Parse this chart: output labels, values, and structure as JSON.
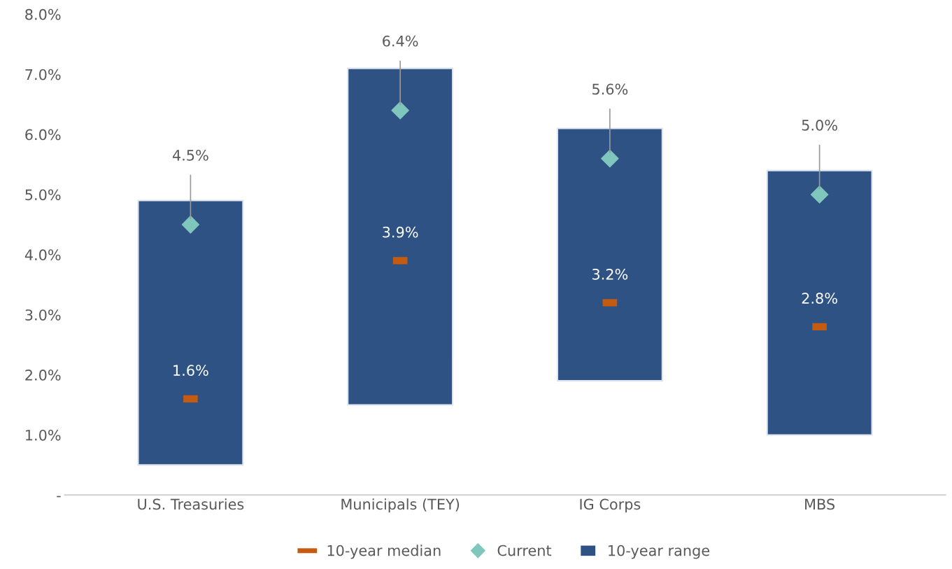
{
  "chart_data": {
    "type": "bar",
    "categories": [
      "U.S. Treasuries",
      "Municipals (TEY)",
      "IG Corps",
      "MBS"
    ],
    "ylim": [
      0,
      8
    ],
    "yticks": [
      {
        "value": 0,
        "label": "-"
      },
      {
        "value": 1,
        "label": "1.0%"
      },
      {
        "value": 2,
        "label": "2.0%"
      },
      {
        "value": 3,
        "label": "3.0%"
      },
      {
        "value": 4,
        "label": "4.0%"
      },
      {
        "value": 5,
        "label": "5.0%"
      },
      {
        "value": 6,
        "label": "6.0%"
      },
      {
        "value": 7,
        "label": "7.0%"
      },
      {
        "value": 8,
        "label": "8.0%"
      }
    ],
    "grid": false,
    "legend": "bottom",
    "series": [
      {
        "name": "10-year range",
        "color": "#2e5283",
        "base": [
          0.5,
          1.5,
          1.9,
          1.0
        ],
        "values": [
          4.4,
          5.6,
          4.2,
          4.4
        ]
      },
      {
        "name": "10-year median",
        "type": "scatter",
        "color": "#c55a11",
        "values": [
          1.6,
          3.9,
          3.2,
          2.8
        ],
        "value_labels": [
          "1.6%",
          "3.9%",
          "3.2%",
          "2.8%"
        ]
      },
      {
        "name": "Current",
        "type": "scatter",
        "marker": "diamond",
        "color": "#7fc6bd",
        "values": [
          4.5,
          6.4,
          5.6,
          5.0
        ],
        "value_labels": [
          "4.5%",
          "6.4%",
          "5.6%",
          "5.0%"
        ]
      }
    ]
  }
}
